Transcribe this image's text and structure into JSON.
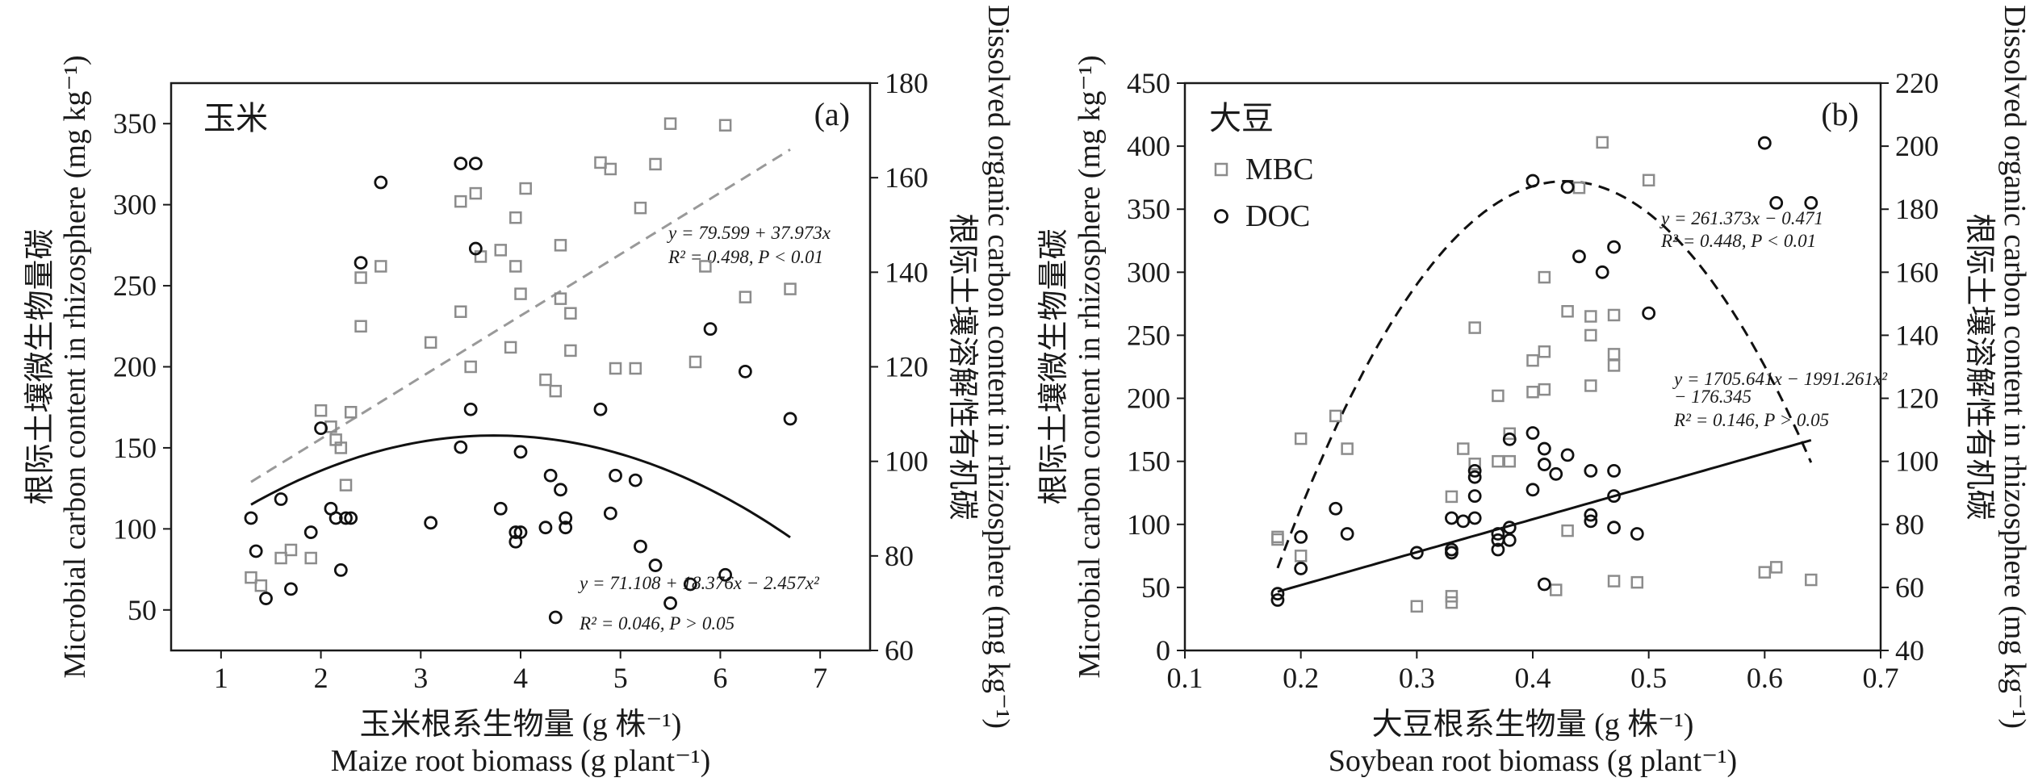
{
  "chart_data": [
    {
      "type": "scatter",
      "panel_label": "(a)",
      "crop_name": "玉米",
      "xlabel_cn": "玉米根系生物量 (g 株⁻¹)",
      "xlabel_en": "Maize root biomass (g plant⁻¹)",
      "ylabel_left_cn": "根际土壤微生物量碳",
      "ylabel_left_en": "Microbial carbon content in rhizosphere (mg kg⁻¹)",
      "ylabel_right_cn": "根际土壤溶解性有机碳",
      "ylabel_right_en": "Dissolved organic carbon content in rhizosphere (mg kg⁻¹)",
      "xlim": [
        0.5,
        7.5
      ],
      "ylim_left": [
        25,
        375
      ],
      "ylim_right": [
        60,
        180
      ],
      "x_ticks": [
        1,
        2,
        3,
        4,
        5,
        6,
        7
      ],
      "y_ticks_left": [
        50,
        100,
        150,
        200,
        250,
        300,
        350
      ],
      "y_ticks_right": [
        60,
        80,
        100,
        120,
        140,
        160,
        180
      ],
      "legend": null,
      "series": [
        {
          "name": "MBC",
          "marker": "square",
          "axis": "left",
          "points": [
            [
              1.3,
              70
            ],
            [
              1.4,
              65
            ],
            [
              1.6,
              82
            ],
            [
              1.7,
              87
            ],
            [
              1.9,
              82
            ],
            [
              2.0,
              173
            ],
            [
              2.1,
              163
            ],
            [
              2.15,
              155
            ],
            [
              2.2,
              150
            ],
            [
              2.25,
              127
            ],
            [
              2.3,
              172
            ],
            [
              2.4,
              225
            ],
            [
              2.4,
              255
            ],
            [
              2.6,
              262
            ],
            [
              3.1,
              215
            ],
            [
              3.4,
              234
            ],
            [
              3.4,
              302
            ],
            [
              3.5,
              200
            ],
            [
              3.55,
              307
            ],
            [
              3.6,
              268
            ],
            [
              3.8,
              272
            ],
            [
              3.9,
              212
            ],
            [
              3.95,
              262
            ],
            [
              3.95,
              292
            ],
            [
              4.0,
              245
            ],
            [
              4.05,
              310
            ],
            [
              4.25,
              192
            ],
            [
              4.35,
              185
            ],
            [
              4.4,
              275
            ],
            [
              4.4,
              242
            ],
            [
              4.5,
              233
            ],
            [
              4.5,
              210
            ],
            [
              4.8,
              326
            ],
            [
              4.9,
              322
            ],
            [
              4.95,
              199
            ],
            [
              5.15,
              199
            ],
            [
              5.2,
              298
            ],
            [
              5.35,
              325
            ],
            [
              5.5,
              350
            ],
            [
              5.75,
              203
            ],
            [
              5.85,
              262
            ],
            [
              6.05,
              349
            ],
            [
              6.25,
              243
            ],
            [
              6.7,
              248
            ]
          ]
        },
        {
          "name": "DOC",
          "marker": "circle",
          "axis": "right",
          "points": [
            [
              1.3,
              88
            ],
            [
              1.35,
              81
            ],
            [
              1.45,
              71
            ],
            [
              1.6,
              92
            ],
            [
              1.7,
              73
            ],
            [
              1.9,
              85
            ],
            [
              2.0,
              107
            ],
            [
              2.1,
              90
            ],
            [
              2.15,
              88
            ],
            [
              2.2,
              77
            ],
            [
              2.25,
              88
            ],
            [
              2.3,
              88
            ],
            [
              2.4,
              142
            ],
            [
              2.6,
              159
            ],
            [
              3.1,
              87
            ],
            [
              3.4,
              103
            ],
            [
              3.5,
              111
            ],
            [
              3.55,
              145
            ],
            [
              3.55,
              163
            ],
            [
              3.4,
              163
            ],
            [
              3.8,
              90
            ],
            [
              3.95,
              85
            ],
            [
              3.95,
              83
            ],
            [
              4.0,
              102
            ],
            [
              4.0,
              85
            ],
            [
              4.25,
              86
            ],
            [
              4.3,
              97
            ],
            [
              4.35,
              67
            ],
            [
              4.4,
              94
            ],
            [
              4.45,
              86
            ],
            [
              4.45,
              88
            ],
            [
              4.8,
              111
            ],
            [
              4.9,
              89
            ],
            [
              4.95,
              97
            ],
            [
              5.15,
              96
            ],
            [
              5.2,
              82
            ],
            [
              5.35,
              78
            ],
            [
              5.5,
              70
            ],
            [
              5.7,
              74
            ],
            [
              5.9,
              128
            ],
            [
              6.05,
              76
            ],
            [
              6.25,
              119
            ],
            [
              6.7,
              109
            ]
          ]
        }
      ],
      "fits": [
        {
          "axis": "left",
          "style": "dashed",
          "equation": "y = 79.599 + 37.973x",
          "stats": "R² = 0.498, P < 0.01",
          "intercept": 79.599,
          "linear": 37.973,
          "quadratic": 0,
          "x_range": [
            1.3,
            6.7
          ]
        },
        {
          "axis": "right",
          "style": "solid",
          "equation": "y = 71.108 + 18.376x − 2.457x²",
          "stats": "R² = 0.046, P > 0.05",
          "intercept": 71.108,
          "linear": 18.376,
          "quadratic": -2.457,
          "x_range": [
            1.3,
            6.7
          ]
        }
      ]
    },
    {
      "type": "scatter",
      "panel_label": "(b)",
      "crop_name": "大豆",
      "xlabel_cn": "大豆根系生物量 (g 株⁻¹)",
      "xlabel_en": "Soybean root biomass (g plant⁻¹)",
      "ylabel_left_cn": "根际土壤微生物量碳",
      "ylabel_left_en": "Microbial carbon content in rhizosphere (mg kg⁻¹)",
      "ylabel_right_cn": "根际土壤溶解性有机碳",
      "ylabel_right_en": "Dissolved organic carbon content in rhizosphere (mg kg⁻¹)",
      "xlim": [
        0.1,
        0.7
      ],
      "ylim_left": [
        0,
        450
      ],
      "ylim_right": [
        40,
        220
      ],
      "x_ticks": [
        0.1,
        0.2,
        0.3,
        0.4,
        0.5,
        0.6,
        0.7
      ],
      "y_ticks_left": [
        0,
        50,
        100,
        150,
        200,
        250,
        300,
        350,
        400,
        450
      ],
      "y_ticks_right": [
        40,
        60,
        80,
        100,
        120,
        140,
        160,
        180,
        200,
        220
      ],
      "legend": [
        "MBC",
        "DOC"
      ],
      "series": [
        {
          "name": "MBC",
          "marker": "square",
          "axis": "left",
          "points": [
            [
              0.18,
              88
            ],
            [
              0.18,
              90
            ],
            [
              0.2,
              168
            ],
            [
              0.2,
              75
            ],
            [
              0.23,
              186
            ],
            [
              0.24,
              160
            ],
            [
              0.3,
              35
            ],
            [
              0.33,
              122
            ],
            [
              0.33,
              43
            ],
            [
              0.33,
              38
            ],
            [
              0.34,
              160
            ],
            [
              0.35,
              256
            ],
            [
              0.35,
              148
            ],
            [
              0.37,
              202
            ],
            [
              0.37,
              150
            ],
            [
              0.38,
              172
            ],
            [
              0.38,
              150
            ],
            [
              0.4,
              205
            ],
            [
              0.4,
              230
            ],
            [
              0.41,
              237
            ],
            [
              0.41,
              207
            ],
            [
              0.41,
              296
            ],
            [
              0.42,
              48
            ],
            [
              0.43,
              95
            ],
            [
              0.43,
              269
            ],
            [
              0.44,
              367
            ],
            [
              0.45,
              210
            ],
            [
              0.45,
              250
            ],
            [
              0.45,
              265
            ],
            [
              0.46,
              403
            ],
            [
              0.47,
              266
            ],
            [
              0.47,
              235
            ],
            [
              0.47,
              226
            ],
            [
              0.47,
              55
            ],
            [
              0.49,
              54
            ],
            [
              0.5,
              373
            ],
            [
              0.6,
              62
            ],
            [
              0.61,
              66
            ],
            [
              0.64,
              56
            ]
          ]
        },
        {
          "name": "DOC",
          "marker": "circle",
          "axis": "right",
          "points": [
            [
              0.18,
              58
            ],
            [
              0.18,
              56
            ],
            [
              0.2,
              66
            ],
            [
              0.2,
              76
            ],
            [
              0.23,
              85
            ],
            [
              0.24,
              77
            ],
            [
              0.3,
              71
            ],
            [
              0.33,
              82
            ],
            [
              0.33,
              71
            ],
            [
              0.33,
              72
            ],
            [
              0.34,
              81
            ],
            [
              0.35,
              89
            ],
            [
              0.35,
              95
            ],
            [
              0.35,
              97
            ],
            [
              0.35,
              82
            ],
            [
              0.37,
              75
            ],
            [
              0.37,
              77
            ],
            [
              0.37,
              72
            ],
            [
              0.38,
              75
            ],
            [
              0.38,
              107
            ],
            [
              0.38,
              79
            ],
            [
              0.4,
              91
            ],
            [
              0.4,
              109
            ],
            [
              0.4,
              189
            ],
            [
              0.41,
              104
            ],
            [
              0.41,
              99
            ],
            [
              0.41,
              61
            ],
            [
              0.42,
              96
            ],
            [
              0.43,
              102
            ],
            [
              0.43,
              187
            ],
            [
              0.44,
              165
            ],
            [
              0.45,
              83
            ],
            [
              0.45,
              81
            ],
            [
              0.45,
              97
            ],
            [
              0.46,
              160
            ],
            [
              0.47,
              89
            ],
            [
              0.47,
              97
            ],
            [
              0.47,
              79
            ],
            [
              0.47,
              168
            ],
            [
              0.49,
              77
            ],
            [
              0.5,
              147
            ],
            [
              0.6,
              201
            ],
            [
              0.61,
              182
            ],
            [
              0.64,
              182
            ]
          ]
        }
      ],
      "fits": [
        {
          "axis": "left",
          "style": "solid",
          "equation": "y = 261.373x − 0.471",
          "stats": "R² = 0.448, P < 0.01",
          "intercept": -0.471,
          "linear": 261.373,
          "quadratic": 0,
          "x_range": [
            0.18,
            0.64
          ]
        },
        {
          "axis": "right",
          "style": "dashed",
          "equation": "y = 1705.641x − 1991.261x²",
          "equation_line2": "− 176.345",
          "stats": "R² = 0.146, P > 0.05",
          "intercept": -176.345,
          "linear": 1705.641,
          "quadratic": -1991.261,
          "x_range": [
            0.18,
            0.64
          ]
        }
      ]
    }
  ]
}
